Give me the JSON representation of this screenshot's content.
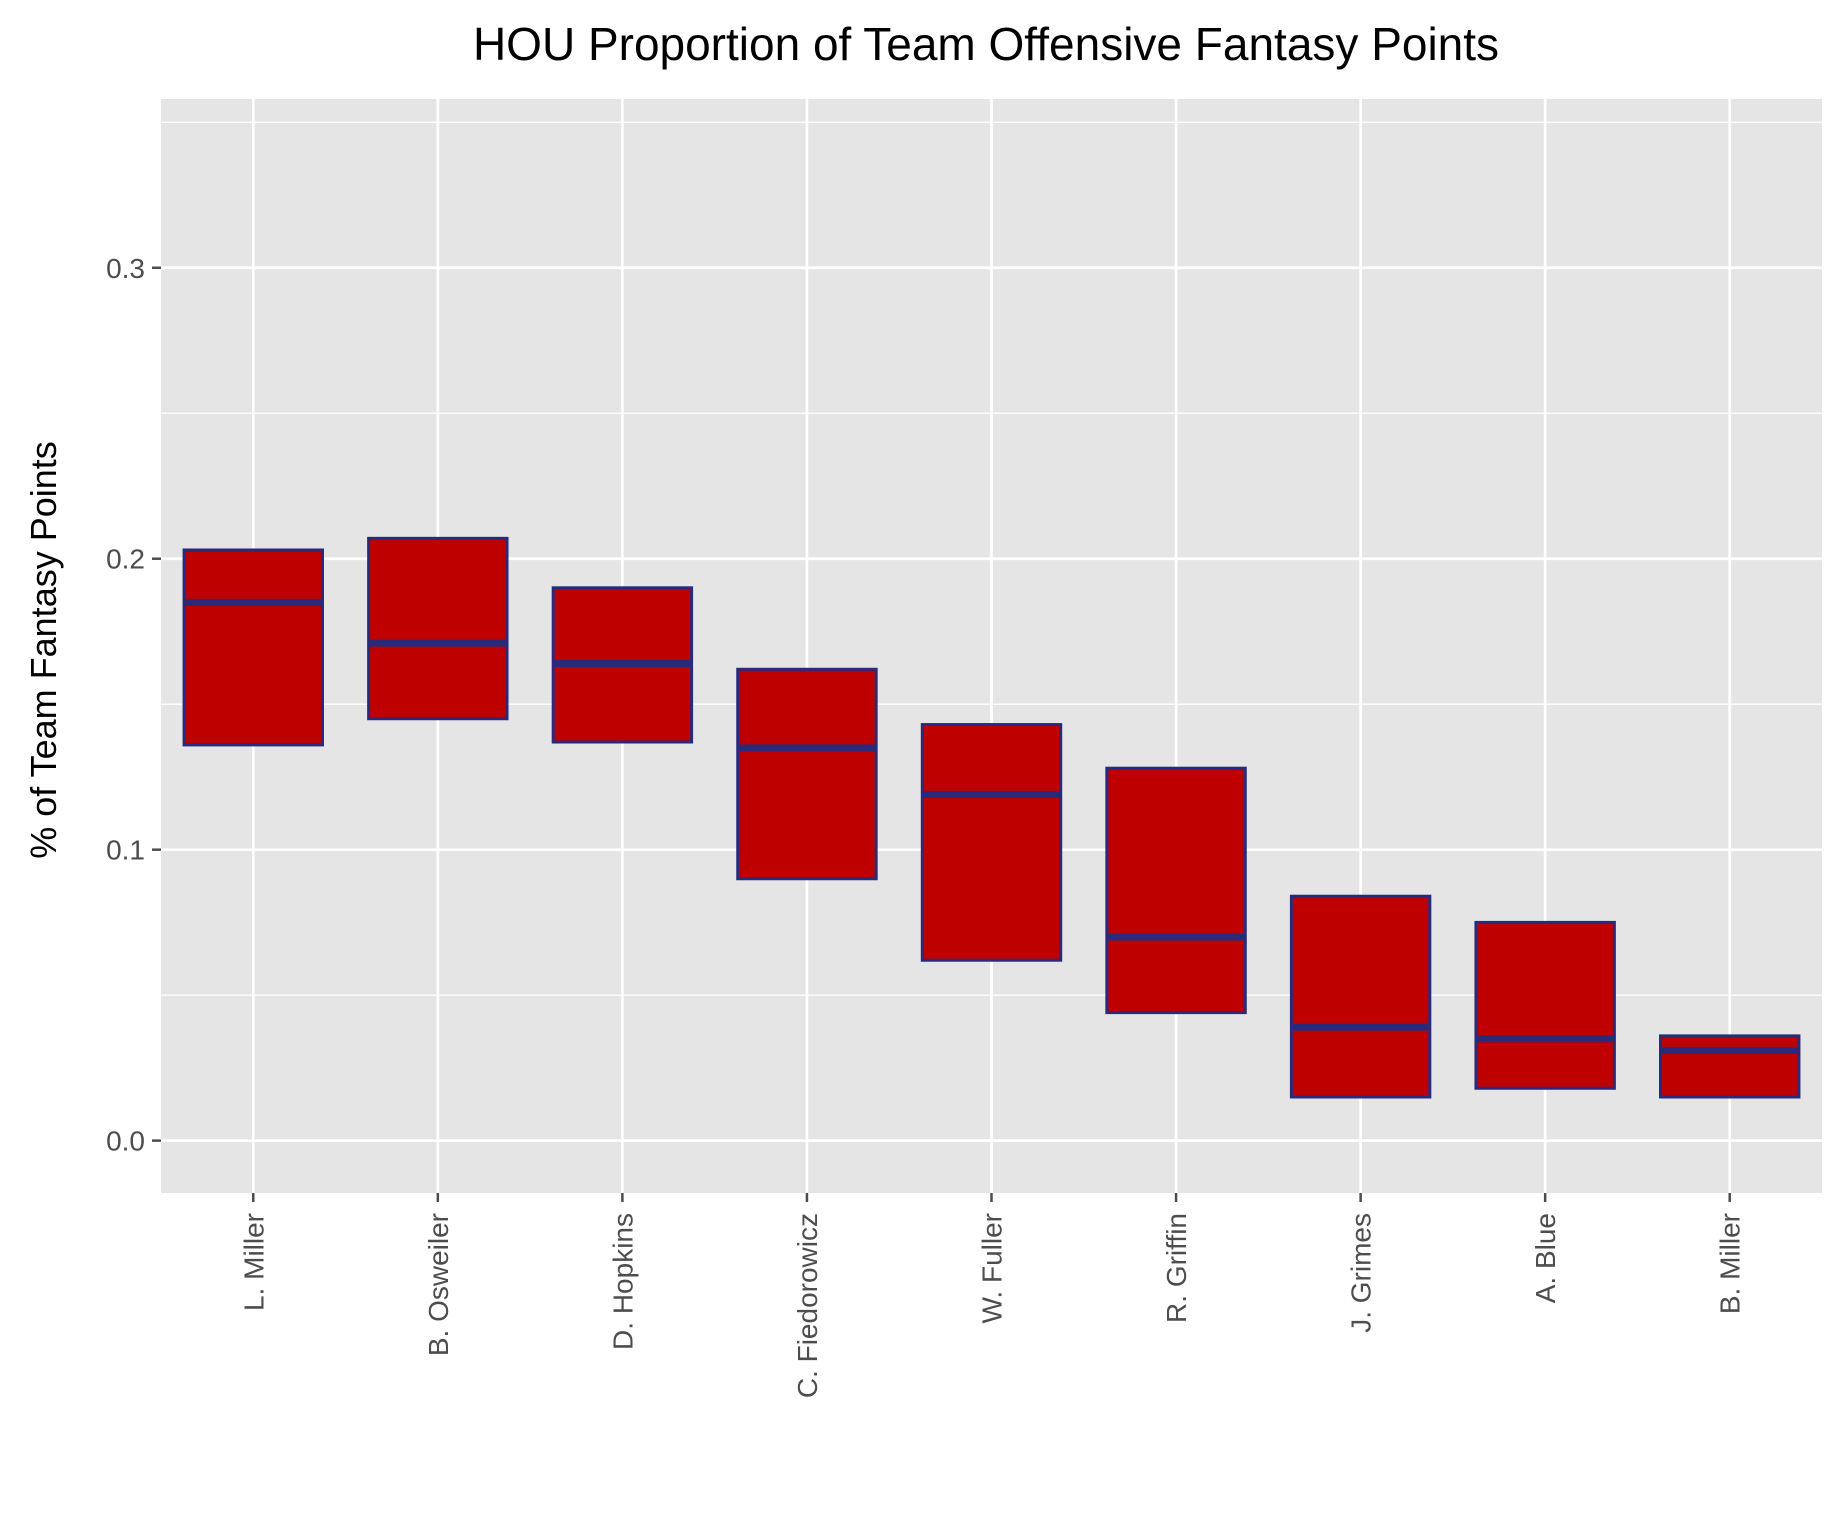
{
  "colors": {
    "panel": "#e5e5e5",
    "grid": "#ffffff",
    "box_fill": "#bf0000",
    "box_stroke": "#2a2a7a",
    "tick": "#4d4d4d",
    "text": "#000000"
  },
  "chart_data": {
    "type": "boxplot",
    "title": "HOU Proportion of Team Offensive Fantasy Points",
    "xlabel": "",
    "ylabel": "% of Team Fantasy Points",
    "ylim": [
      -0.018,
      0.358
    ],
    "y_ticks": [
      0.0,
      0.1,
      0.2,
      0.3
    ],
    "y_tick_labels": [
      "0.0",
      "0.1",
      "0.2",
      "0.3"
    ],
    "grid": true,
    "categories": [
      "L. Miller",
      "B. Osweiler",
      "D. Hopkins",
      "C. Fiedorowicz",
      "W. Fuller",
      "R. Griffin",
      "J. Grimes",
      "A. Blue",
      "B. Miller"
    ],
    "boxes": [
      {
        "q1": 0.136,
        "median": 0.185,
        "q3": 0.203
      },
      {
        "q1": 0.145,
        "median": 0.171,
        "q3": 0.207
      },
      {
        "q1": 0.137,
        "median": 0.164,
        "q3": 0.19
      },
      {
        "q1": 0.09,
        "median": 0.135,
        "q3": 0.162
      },
      {
        "q1": 0.062,
        "median": 0.119,
        "q3": 0.143
      },
      {
        "q1": 0.044,
        "median": 0.07,
        "q3": 0.128
      },
      {
        "q1": 0.015,
        "median": 0.039,
        "q3": 0.084
      },
      {
        "q1": 0.018,
        "median": 0.035,
        "q3": 0.075
      },
      {
        "q1": 0.015,
        "median": 0.031,
        "q3": 0.036
      }
    ]
  }
}
